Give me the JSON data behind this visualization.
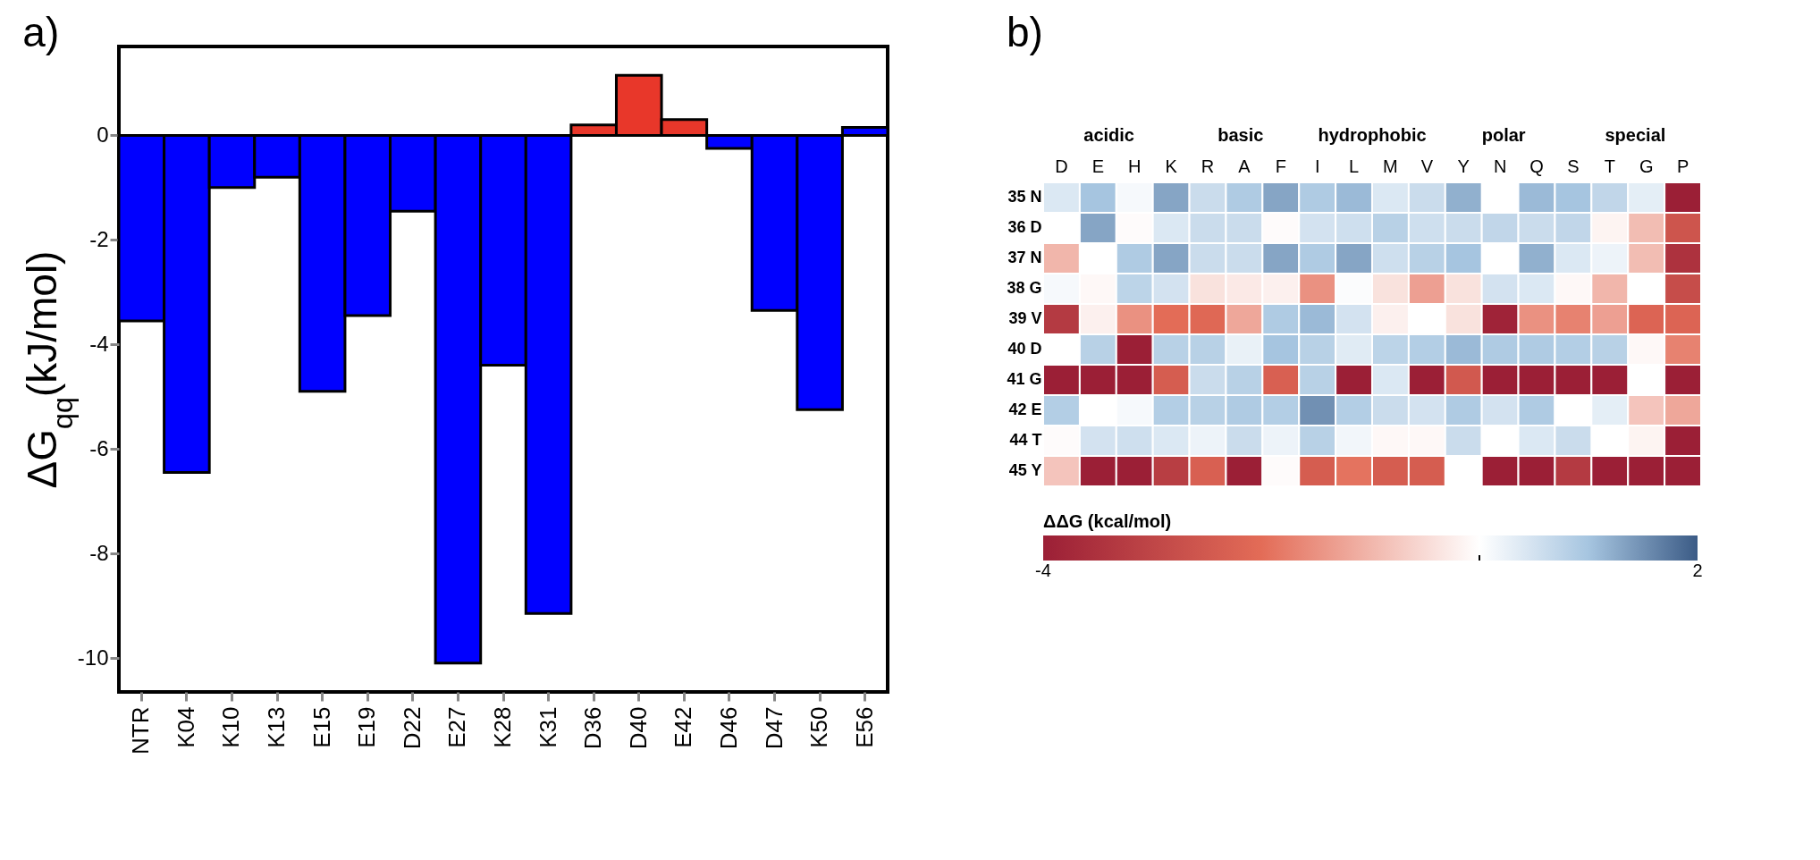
{
  "chart_data": [
    {
      "type": "bar",
      "title": "a)",
      "ylabel": "ΔG$_{qq}$(kJ/mol)",
      "categories": [
        "NTR",
        "K04",
        "K10",
        "K13",
        "E15",
        "E19",
        "D22",
        "E27",
        "K28",
        "K31",
        "D36",
        "D40",
        "E42",
        "D46",
        "D47",
        "K50",
        "E56"
      ],
      "values": [
        -3.55,
        -6.45,
        -1.0,
        -0.8,
        -4.9,
        -3.45,
        -1.45,
        -10.1,
        -4.4,
        -9.15,
        0.2,
        1.15,
        0.3,
        -0.25,
        -3.35,
        -5.25,
        0.15
      ],
      "colors": [
        "#0000ff",
        "#0000ff",
        "#0000ff",
        "#0000ff",
        "#0000ff",
        "#0000ff",
        "#0000ff",
        "#0000ff",
        "#0000ff",
        "#0000ff",
        "#e8372a",
        "#e8372a",
        "#e8372a",
        "#0000ff",
        "#0000ff",
        "#0000ff",
        "#0000ff"
      ],
      "ylim": [
        -10.65,
        1.7
      ],
      "yticks": [
        -10,
        -8,
        -6,
        -4,
        -2,
        0
      ],
      "grid": false
    },
    {
      "type": "heatmap",
      "title": "b)",
      "clabel": "ΔΔG (kcal/mol)",
      "categories": [
        "D",
        "E",
        "H",
        "K",
        "R",
        "A",
        "F",
        "I",
        "L",
        "M",
        "V",
        "Y",
        "N",
        "Q",
        "S",
        "T",
        "G",
        "P"
      ],
      "y_categories": [
        "35 N",
        "36 D",
        "37 N",
        "38 G",
        "39 V",
        "40 D",
        "41 G",
        "42 E",
        "44 T",
        "45 Y"
      ],
      "cells": [
        [
          0.4,
          1.0,
          0.1,
          1.3,
          0.6,
          0.9,
          1.3,
          0.9,
          1.1,
          0.4,
          0.6,
          1.2,
          null,
          1.1,
          1.0,
          0.7,
          0.3,
          -4
        ],
        [
          null,
          1.3,
          -0.05,
          0.4,
          0.6,
          0.6,
          -0.05,
          0.5,
          0.55,
          0.8,
          0.55,
          0.6,
          0.7,
          0.6,
          0.7,
          -0.15,
          -0.9,
          -2.6
        ],
        [
          -1.0,
          0,
          0.9,
          1.3,
          0.6,
          0.6,
          1.3,
          0.9,
          1.3,
          0.55,
          0.8,
          1.0,
          null,
          1.2,
          0.4,
          0.2,
          -0.9,
          -3.5
        ],
        [
          0.1,
          -0.1,
          0.75,
          0.5,
          -0.4,
          -0.3,
          -0.2,
          -1.5,
          0.05,
          -0.4,
          -1.3,
          -0.4,
          0.5,
          0.4,
          -0.1,
          -1.0,
          null,
          -2.8
        ],
        [
          -3.3,
          -0.2,
          -1.5,
          -2.0,
          -2.1,
          -1.2,
          0.9,
          1.1,
          0.5,
          -0.2,
          null,
          -0.4,
          -3.9,
          -1.5,
          -1.7,
          -1.3,
          -2.2,
          -2.2
        ],
        [
          null,
          0.8,
          -4,
          0.8,
          0.8,
          0.25,
          1.0,
          0.8,
          0.35,
          0.75,
          0.85,
          1.1,
          0.9,
          0.9,
          0.85,
          0.8,
          -0.1,
          -1.7
        ],
        [
          -4,
          -4,
          -4,
          -2.4,
          0.6,
          0.8,
          -2.3,
          0.8,
          -4,
          0.4,
          -4,
          -2.5,
          -4,
          -4,
          -4,
          -4,
          null,
          -4
        ],
        [
          0.85,
          null,
          0.1,
          0.85,
          0.8,
          0.9,
          0.85,
          1.5,
          0.85,
          0.6,
          0.5,
          0.9,
          0.5,
          0.9,
          0,
          0.3,
          -0.8,
          -1.2
        ],
        [
          -0.05,
          0.5,
          0.55,
          0.4,
          0.2,
          0.6,
          0.2,
          0.8,
          0.15,
          -0.1,
          -0.1,
          0.6,
          0,
          0.4,
          0.6,
          null,
          -0.15,
          -4
        ],
        [
          -0.8,
          -4,
          -4,
          -3.2,
          -2.3,
          -4,
          -0.05,
          -2.4,
          -1.9,
          -2.4,
          -2.4,
          null,
          -4,
          -4,
          -3.3,
          -4,
          -4,
          -4
        ]
      ],
      "clim": [
        -4,
        2
      ],
      "cticks": [
        -4,
        {
          "value": 0,
          "label": null
        },
        2
      ],
      "annotations": [
        "acidic",
        "basic",
        "hydrophobic",
        "polar",
        "special"
      ]
    }
  ]
}
